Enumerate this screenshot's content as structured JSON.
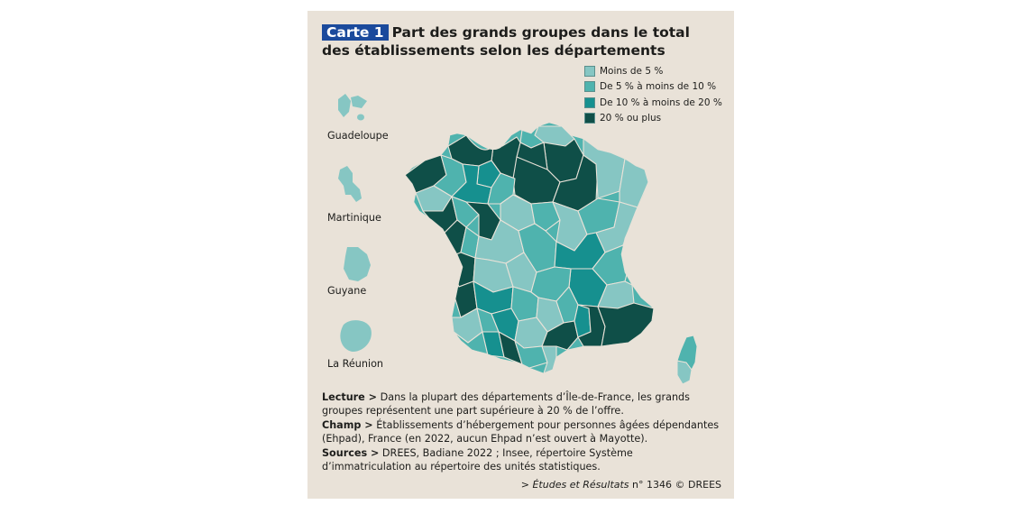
{
  "title": {
    "tag": "Carte 1",
    "line1": "Part des grands groupes dans le total",
    "line2": "des établissements selon les départements"
  },
  "legend": [
    {
      "label": "Moins de 5 %",
      "color": "#86c6c3"
    },
    {
      "label": "De 5 % à moins de 10 %",
      "color": "#4fb3ae"
    },
    {
      "label": "De 10 % à moins de 20 %",
      "color": "#16908f"
    },
    {
      "label": "20 % ou plus",
      "color": "#0f4f48"
    }
  ],
  "overseas": {
    "guadeloupe": "Guadeloupe",
    "martinique": "Martinique",
    "guyane": "Guyane",
    "reunion": "La Réunion"
  },
  "notes": {
    "lecture_label": "Lecture >",
    "lecture_text": " Dans la plupart des départements d’Île-de-France, les grands groupes représentent une part supérieure à 20 % de l’offre.",
    "champ_label": "Champ >",
    "champ_text": " Établissements d’hébergement pour personnes âgées dépendantes (Ehpad), France (en 2022, aucun Ehpad n’est ouvert à Mayotte).",
    "sources_label": "Sources >",
    "sources_text": " DREES, Badiane 2022 ; Insee, répertoire Système d’immatriculation au répertoire des unités statistiques."
  },
  "credit": {
    "prefix": "> ",
    "italic": "Études et Résultats",
    "rest": " n° 1346 © DREES"
  }
}
